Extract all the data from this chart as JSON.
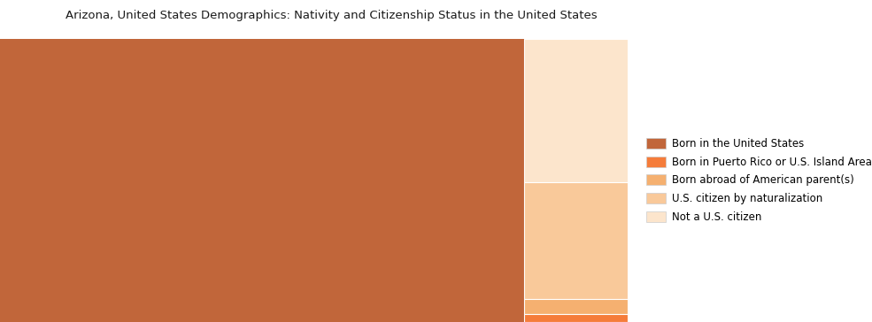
{
  "title": "Arizona, United States Demographics: Nativity and Citizenship Status in the United States",
  "categories": [
    "Born in the United States",
    "Born in Puerto Rico or U.S. Island Areas",
    "Born abroad of American parent(s)",
    "U.S. citizen by naturalization",
    "Not a U.S. citizen"
  ],
  "values": [
    5890776,
    34000,
    60000,
    480000,
    590000
  ],
  "colors": [
    "#c1663a",
    "#f57c3a",
    "#f5b070",
    "#f9c99a",
    "#fce5cc"
  ],
  "background_color": "#ffffff",
  "title_fontsize": 9.5,
  "legend_fontsize": 8.5,
  "figsize": [
    9.85,
    3.64
  ],
  "dpi": 100
}
